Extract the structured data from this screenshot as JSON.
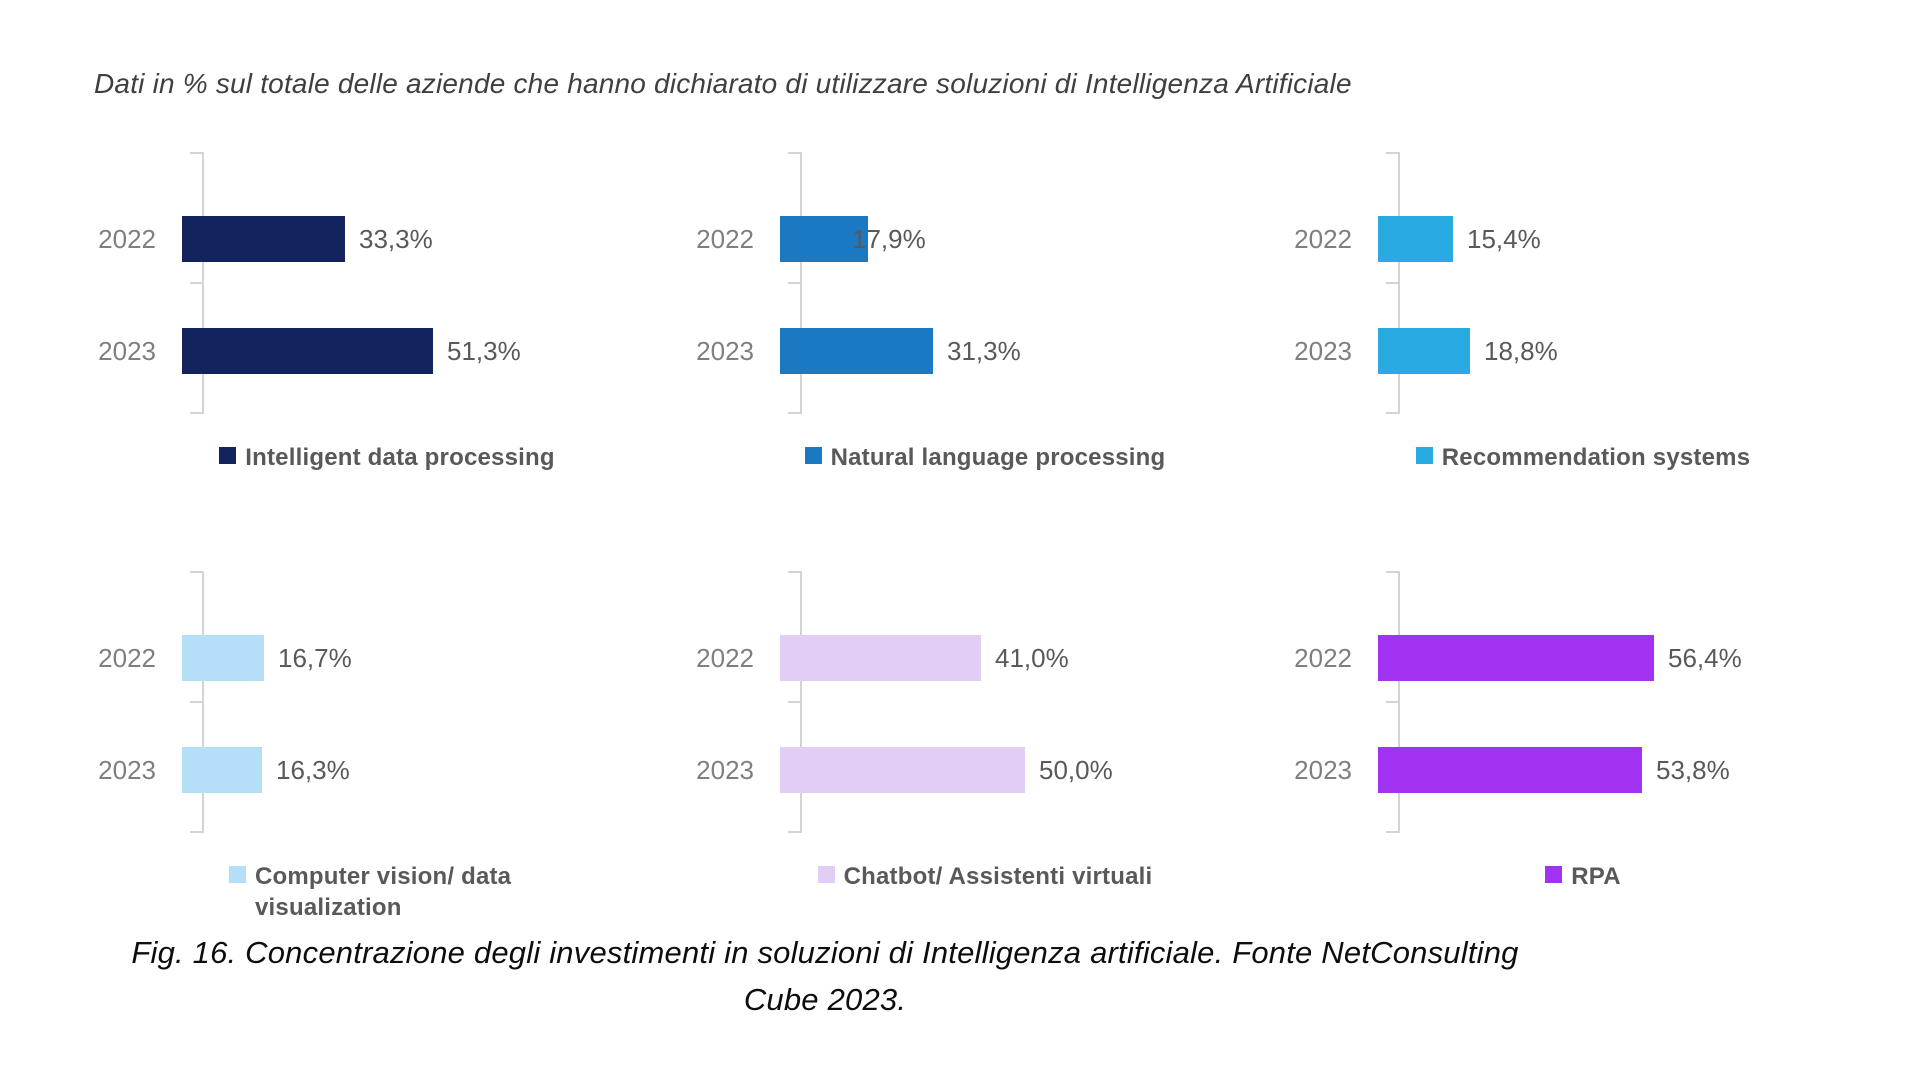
{
  "page": {
    "title": "Dati in % sul totale delle aziende che hanno dichiarato di utilizzare soluzioni di Intelligenza Artificiale",
    "caption": "Fig. 16. Concentrazione degli investimenti in soluzioni di Intelligenza artificiale. Fonte NetConsulting Cube 2023."
  },
  "chart_data": {
    "type": "bar",
    "orientation": "horizontal",
    "title": "Dati in % sul totale delle aziende che hanno dichiarato di utilizzare soluzioni di Intelligenza Artificiale",
    "categories": [
      "2022",
      "2023"
    ],
    "unit": "%",
    "value_format": "comma-decimal (it-IT)",
    "xlim": [
      0,
      62
    ],
    "grid": false,
    "legend_position": "bottom",
    "charts": [
      {
        "legend": "Intelligent data processing",
        "color": "#13235b",
        "values": [
          33.3,
          51.3
        ],
        "labels": [
          "33,3%",
          "51,3%"
        ]
      },
      {
        "legend": "Natural language processing",
        "color": "#1b79c4",
        "values": [
          17.9,
          31.3
        ],
        "labels": [
          "17,9%",
          "31,3%"
        ]
      },
      {
        "legend": "Recommendation systems",
        "color": "#29abe2",
        "values": [
          15.4,
          18.8
        ],
        "labels": [
          "15,4%",
          "18,8%"
        ]
      },
      {
        "legend": "Computer vision/ data visualization",
        "color": "#b5def8",
        "values": [
          16.7,
          16.3
        ],
        "labels": [
          "16,7%",
          "16,3%"
        ]
      },
      {
        "legend": "Chatbot/ Assistenti virtuali",
        "color": "#e2cdf5",
        "values": [
          41.0,
          50.0
        ],
        "labels": [
          "41,0%",
          "50,0%"
        ]
      },
      {
        "legend": "RPA",
        "color": "#a232f2",
        "values": [
          56.4,
          53.8
        ],
        "labels": [
          "56,4%",
          "53,8%"
        ]
      }
    ]
  }
}
